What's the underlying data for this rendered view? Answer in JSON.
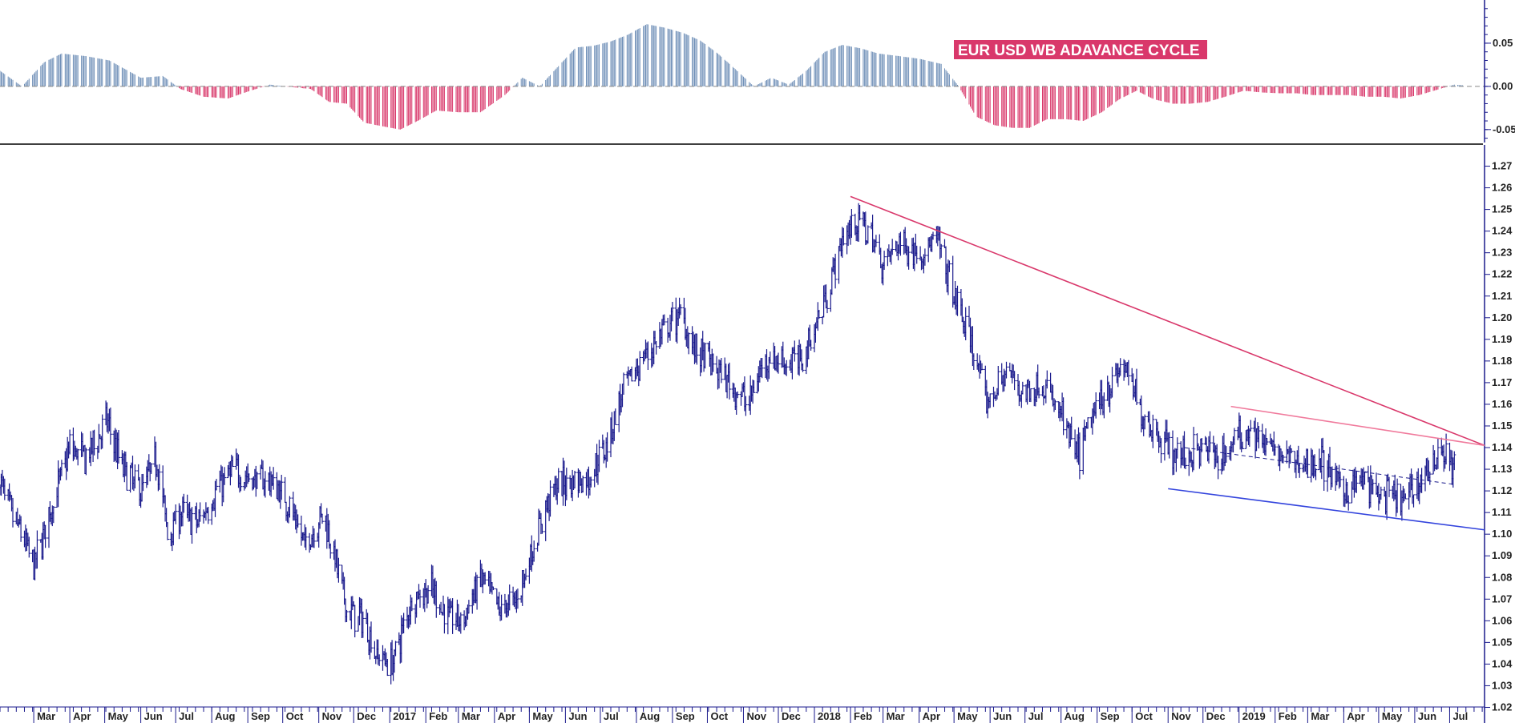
{
  "chart_data": [
    {
      "type": "bar",
      "title": "EUR USD WB ADAVANCE CYCLE",
      "ylim": [
        -0.065,
        0.1
      ],
      "y_ticks": [
        "0.05",
        "0.00",
        "-0.05"
      ],
      "colors": {
        "positive": "#7090b8",
        "negative": "#d9386b",
        "zero_line": "#888888"
      },
      "x": [
        "2016-02-01",
        "2016-02-20",
        "2016-03-10",
        "2016-03-25",
        "2016-04-15",
        "2016-05-05",
        "2016-06-01",
        "2016-06-20",
        "2016-07-05",
        "2016-07-25",
        "2016-08-15",
        "2016-09-01",
        "2016-09-20",
        "2016-10-10",
        "2016-10-25",
        "2016-11-10",
        "2016-11-25",
        "2016-12-10",
        "2016-12-25",
        "2017-01-10",
        "2017-01-25",
        "2017-02-10",
        "2017-03-01",
        "2017-03-20",
        "2017-04-10",
        "2017-04-25",
        "2017-05-10",
        "2017-05-25",
        "2017-06-10",
        "2017-06-25",
        "2017-07-10",
        "2017-07-25",
        "2017-08-10",
        "2017-08-25",
        "2017-09-10",
        "2017-09-25",
        "2017-10-10",
        "2017-10-25",
        "2017-11-10",
        "2017-11-25",
        "2017-12-10",
        "2017-12-25",
        "2018-01-10",
        "2018-01-25",
        "2018-02-10",
        "2018-02-25",
        "2018-03-15",
        "2018-04-01",
        "2018-04-20",
        "2018-05-05",
        "2018-05-20",
        "2018-06-05",
        "2018-06-20",
        "2018-07-05",
        "2018-07-20",
        "2018-08-05",
        "2018-08-20",
        "2018-09-05",
        "2018-09-20",
        "2018-10-05",
        "2018-10-20",
        "2018-11-05",
        "2018-11-20",
        "2018-12-05",
        "2018-12-20",
        "2019-01-05",
        "2019-01-20",
        "2019-02-05",
        "2019-02-20",
        "2019-03-05",
        "2019-03-20",
        "2019-04-05",
        "2019-04-20",
        "2019-05-05",
        "2019-05-20",
        "2019-06-05",
        "2019-06-20",
        "2019-07-05",
        "2019-07-15"
      ],
      "values": [
        0.018,
        0.0,
        0.028,
        0.038,
        0.035,
        0.03,
        0.01,
        0.012,
        -0.003,
        -0.012,
        -0.014,
        -0.006,
        0.002,
        -0.001,
        -0.003,
        -0.018,
        -0.02,
        -0.042,
        -0.046,
        -0.05,
        -0.04,
        -0.028,
        -0.03,
        -0.03,
        -0.01,
        0.01,
        0.0,
        0.022,
        0.045,
        0.047,
        0.052,
        0.06,
        0.072,
        0.068,
        0.062,
        0.053,
        0.038,
        0.02,
        0.0,
        0.01,
        0.002,
        0.018,
        0.04,
        0.048,
        0.044,
        0.038,
        0.035,
        0.032,
        0.026,
        0.0,
        -0.035,
        -0.045,
        -0.048,
        -0.048,
        -0.038,
        -0.038,
        -0.04,
        -0.03,
        -0.015,
        -0.005,
        -0.015,
        -0.02,
        -0.02,
        -0.018,
        -0.012,
        -0.005,
        -0.007,
        -0.008,
        -0.008,
        -0.01,
        -0.01,
        -0.01,
        -0.012,
        -0.012,
        -0.014,
        -0.01,
        -0.004,
        0.002,
        0.001
      ]
    },
    {
      "type": "line",
      "title": "",
      "xlabel": "",
      "ylabel": "",
      "ylim": [
        1.015,
        1.275
      ],
      "y_ticks": [
        "1.27",
        "1.26",
        "1.25",
        "1.24",
        "1.23",
        "1.22",
        "1.21",
        "1.20",
        "1.19",
        "1.18",
        "1.17",
        "1.16",
        "1.15",
        "1.14",
        "1.13",
        "1.12",
        "1.11",
        "1.10",
        "1.09",
        "1.08",
        "1.07",
        "1.06",
        "1.05",
        "1.04",
        "1.03",
        "1.02"
      ],
      "x_ticks": [
        "Mar",
        "Apr",
        "May",
        "Jun",
        "Jul",
        "Aug",
        "Sep",
        "Oct",
        "Nov",
        "Dec",
        "2017",
        "Feb",
        "Mar",
        "Apr",
        "May",
        "Jun",
        "Jul",
        "Aug",
        "Sep",
        "Oct",
        "Nov",
        "Dec",
        "2018",
        "Feb",
        "Mar",
        "Apr",
        "May",
        "Jun",
        "Jul",
        "Aug",
        "Sep",
        "Oct",
        "Nov",
        "Dec",
        "2019",
        "Feb",
        "Mar",
        "Apr",
        "May",
        "Jun",
        "Jul"
      ],
      "x_tick_dates": [
        "2016-03-01",
        "2016-04-01",
        "2016-05-01",
        "2016-06-01",
        "2016-07-01",
        "2016-08-01",
        "2016-09-01",
        "2016-10-01",
        "2016-11-01",
        "2016-12-01",
        "2017-01-01",
        "2017-02-01",
        "2017-03-01",
        "2017-04-01",
        "2017-05-01",
        "2017-06-01",
        "2017-07-01",
        "2017-08-01",
        "2017-09-01",
        "2017-10-01",
        "2017-11-01",
        "2017-12-01",
        "2018-01-01",
        "2018-02-01",
        "2018-03-01",
        "2018-04-01",
        "2018-05-01",
        "2018-06-01",
        "2018-07-01",
        "2018-08-01",
        "2018-09-01",
        "2018-10-01",
        "2018-11-01",
        "2018-12-01",
        "2019-01-01",
        "2019-02-01",
        "2019-03-01",
        "2019-04-01",
        "2019-05-01",
        "2019-06-01",
        "2019-07-01"
      ],
      "series": [
        {
          "color": "#1a1a8c",
          "x": [
            "2016-02-01",
            "2016-02-10",
            "2016-02-20",
            "2016-03-01",
            "2016-03-15",
            "2016-04-01",
            "2016-04-15",
            "2016-05-03",
            "2016-05-15",
            "2016-06-01",
            "2016-06-15",
            "2016-06-24",
            "2016-07-05",
            "2016-07-20",
            "2016-08-05",
            "2016-08-20",
            "2016-09-05",
            "2016-09-20",
            "2016-10-05",
            "2016-10-20",
            "2016-11-05",
            "2016-11-10",
            "2016-11-25",
            "2016-12-10",
            "2016-12-20",
            "2017-01-03",
            "2017-01-20",
            "2017-02-05",
            "2017-02-20",
            "2017-03-05",
            "2017-03-20",
            "2017-04-05",
            "2017-04-20",
            "2017-05-05",
            "2017-05-20",
            "2017-06-05",
            "2017-06-20",
            "2017-07-05",
            "2017-07-20",
            "2017-08-05",
            "2017-08-20",
            "2017-09-08",
            "2017-09-20",
            "2017-10-05",
            "2017-10-20",
            "2017-11-05",
            "2017-11-20",
            "2017-12-05",
            "2017-12-20",
            "2018-01-05",
            "2018-01-25",
            "2018-02-05",
            "2018-02-16",
            "2018-03-01",
            "2018-03-15",
            "2018-04-01",
            "2018-04-17",
            "2018-05-01",
            "2018-05-15",
            "2018-05-29",
            "2018-06-15",
            "2018-07-01",
            "2018-07-15",
            "2018-08-01",
            "2018-08-15",
            "2018-09-01",
            "2018-09-24",
            "2018-10-10",
            "2018-10-25",
            "2018-11-12",
            "2018-12-01",
            "2018-12-15",
            "2019-01-01",
            "2019-01-10",
            "2019-01-25",
            "2019-02-10",
            "2019-02-25",
            "2019-03-10",
            "2019-03-20",
            "2019-04-01",
            "2019-04-15",
            "2019-05-01",
            "2019-05-23",
            "2019-06-05",
            "2019-06-20",
            "2019-06-25",
            "2019-07-05"
          ],
          "y": [
            1.125,
            1.11,
            1.1,
            1.085,
            1.11,
            1.14,
            1.135,
            1.152,
            1.132,
            1.12,
            1.135,
            1.1,
            1.11,
            1.105,
            1.12,
            1.13,
            1.125,
            1.125,
            1.115,
            1.095,
            1.11,
            1.1,
            1.065,
            1.06,
            1.045,
            1.04,
            1.07,
            1.075,
            1.062,
            1.06,
            1.08,
            1.065,
            1.07,
            1.095,
            1.12,
            1.125,
            1.125,
            1.14,
            1.165,
            1.18,
            1.19,
            1.202,
            1.185,
            1.178,
            1.17,
            1.16,
            1.182,
            1.18,
            1.18,
            1.2,
            1.235,
            1.245,
            1.24,
            1.225,
            1.235,
            1.23,
            1.235,
            1.21,
            1.19,
            1.16,
            1.175,
            1.165,
            1.17,
            1.155,
            1.135,
            1.16,
            1.178,
            1.155,
            1.145,
            1.135,
            1.14,
            1.135,
            1.145,
            1.15,
            1.14,
            1.135,
            1.132,
            1.135,
            1.128,
            1.12,
            1.125,
            1.118,
            1.115,
            1.125,
            1.135,
            1.14,
            1.13
          ]
        }
      ],
      "trend_lines": [
        {
          "color": "#d9386b",
          "from": [
            "2018-02-01",
            1.256
          ],
          "to": [
            "2019-07-31",
            1.141
          ]
        },
        {
          "color": "#f07a9c",
          "from": [
            "2018-12-25",
            1.159
          ],
          "to": [
            "2019-07-31",
            1.141
          ]
        },
        {
          "color": "#3344dd",
          "from": [
            "2018-11-01",
            1.121
          ],
          "to": [
            "2019-07-31",
            1.102
          ]
        },
        {
          "color": "#1a1a8c",
          "from": [
            "2018-11-15",
            1.14
          ],
          "to": [
            "2019-07-05",
            1.123
          ],
          "dashed": true
        }
      ]
    }
  ]
}
